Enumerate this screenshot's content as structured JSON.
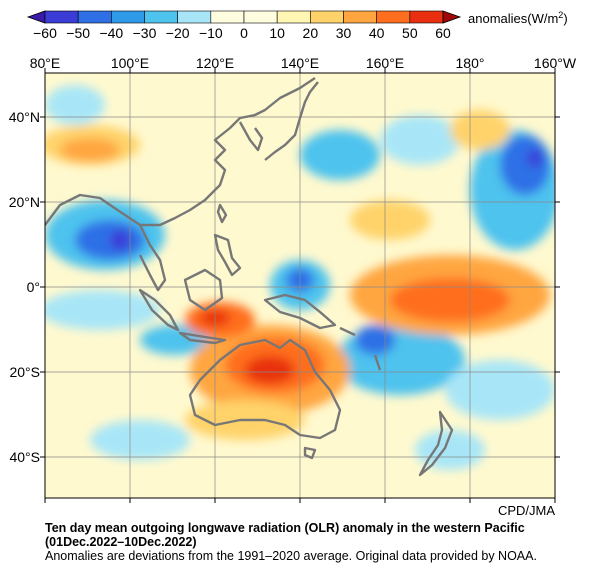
{
  "colorbar": {
    "ticks": [
      "−60",
      "−50",
      "−40",
      "−30",
      "−20",
      "−10",
      "0",
      "10",
      "20",
      "30",
      "40",
      "50",
      "60"
    ],
    "unit_label": "anomalies(W/m",
    "unit_sup": "2",
    "unit_close": ")",
    "colors": [
      "#3b3bd6",
      "#2f6fe6",
      "#2f9be8",
      "#4ec3ee",
      "#a8e6f7",
      "#fffde0",
      "#fff6b3",
      "#ffd36a",
      "#ffa640",
      "#ff6e1f",
      "#e83010"
    ]
  },
  "map": {
    "lon_labels": [
      "80°E",
      "100°E",
      "120°E",
      "140°E",
      "160°E",
      "180°",
      "160°W"
    ],
    "lat_labels": [
      "40°N",
      "20°N",
      "0°",
      "20°S",
      "40°S"
    ],
    "credit": "CPD/JMA",
    "land_outline_color": "#777777"
  },
  "caption": {
    "title": "Ten day mean outgoing longwave radiation (OLR) anomaly in the western Pacific",
    "period": "(01Dec.2022–10Dec.2022)",
    "note": "Anomalies are deviations from the 1991–2020 average. Original data provided by NOAA."
  }
}
